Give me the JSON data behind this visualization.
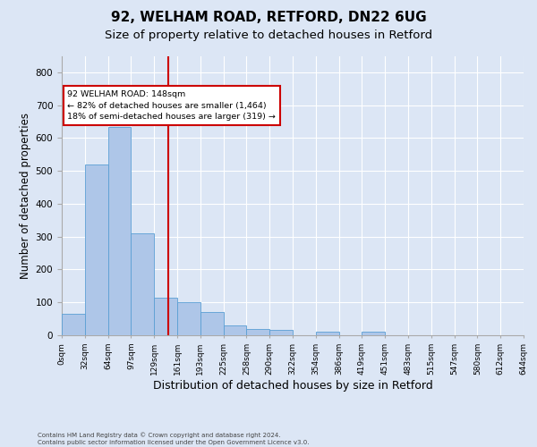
{
  "title1": "92, WELHAM ROAD, RETFORD, DN22 6UG",
  "title2": "Size of property relative to detached houses in Retford",
  "xlabel": "Distribution of detached houses by size in Retford",
  "ylabel": "Number of detached properties",
  "footnote": "Contains HM Land Registry data © Crown copyright and database right 2024.\nContains public sector information licensed under the Open Government Licence v3.0.",
  "bin_labels": [
    "0sqm",
    "32sqm",
    "64sqm",
    "97sqm",
    "129sqm",
    "161sqm",
    "193sqm",
    "225sqm",
    "258sqm",
    "290sqm",
    "322sqm",
    "354sqm",
    "386sqm",
    "419sqm",
    "451sqm",
    "483sqm",
    "515sqm",
    "547sqm",
    "580sqm",
    "612sqm",
    "644sqm"
  ],
  "bar_heights": [
    65,
    520,
    635,
    310,
    115,
    100,
    70,
    30,
    20,
    15,
    0,
    10,
    0,
    10,
    0,
    0,
    0,
    0,
    0,
    0
  ],
  "bar_color": "#aec6e8",
  "bar_edge_color": "#5a9fd4",
  "vline_color": "#cc0000",
  "annotation_text": "92 WELHAM ROAD: 148sqm\n← 82% of detached houses are smaller (1,464)\n18% of semi-detached houses are larger (319) →",
  "annotation_box_color": "#ffffff",
  "annotation_box_edgecolor": "#cc0000",
  "ylim": [
    0,
    850
  ],
  "yticks": [
    0,
    100,
    200,
    300,
    400,
    500,
    600,
    700,
    800
  ],
  "background_color": "#dce6f5",
  "grid_color": "#ffffff",
  "title1_fontsize": 11,
  "title2_fontsize": 9.5,
  "xlabel_fontsize": 9,
  "ylabel_fontsize": 8.5,
  "tick_fontsize": 7.5,
  "xtick_fontsize": 6.5,
  "footnote_fontsize": 5.0
}
